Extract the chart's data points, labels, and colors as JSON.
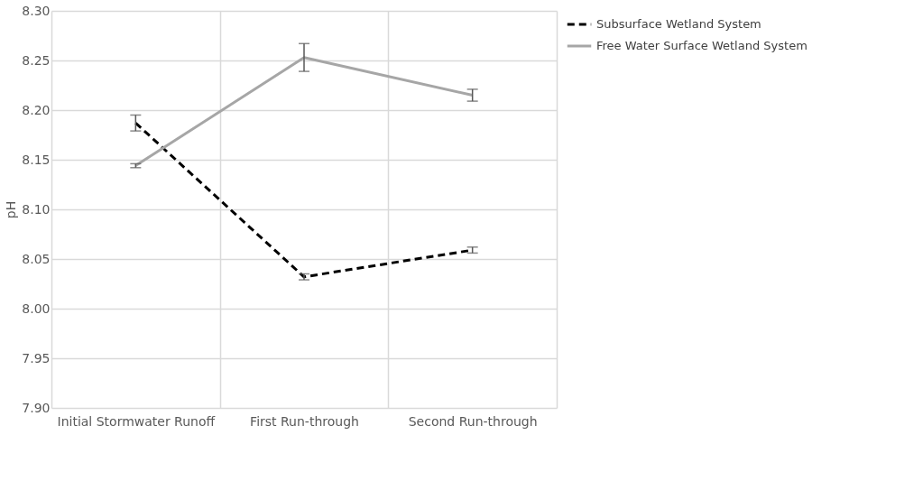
{
  "chart_data": {
    "type": "line",
    "ylabel": "pH",
    "categories": [
      "Initial Stormwater Runoff",
      "First Run-through",
      "Second Run-through"
    ],
    "series": [
      {
        "name": "Subsurface Wetland System",
        "color": "#000000",
        "line_style": "dashed",
        "values": [
          8.187,
          8.032,
          8.059
        ],
        "errors": [
          0.008,
          0.003,
          0.003
        ]
      },
      {
        "name": "Free Water Surface Wetland System",
        "color": "#a6a6a6",
        "line_style": "solid",
        "values": [
          8.144,
          8.253,
          8.215
        ],
        "errors": [
          0.002,
          0.014,
          0.006
        ]
      }
    ],
    "ylim": [
      7.9,
      8.3
    ],
    "yticks": [
      {
        "value": 7.9,
        "label": "7.90"
      },
      {
        "value": 7.95,
        "label": "7.95"
      },
      {
        "value": 8.0,
        "label": "8.00"
      },
      {
        "value": 8.05,
        "label": "8.05"
      },
      {
        "value": 8.1,
        "label": "8.10"
      },
      {
        "value": 8.15,
        "label": "8.15"
      },
      {
        "value": 8.2,
        "label": "8.20"
      },
      {
        "value": 8.25,
        "label": "8.25"
      },
      {
        "value": 8.3,
        "label": "8.30"
      }
    ],
    "grid": true,
    "legend": "right",
    "marker": "none"
  }
}
